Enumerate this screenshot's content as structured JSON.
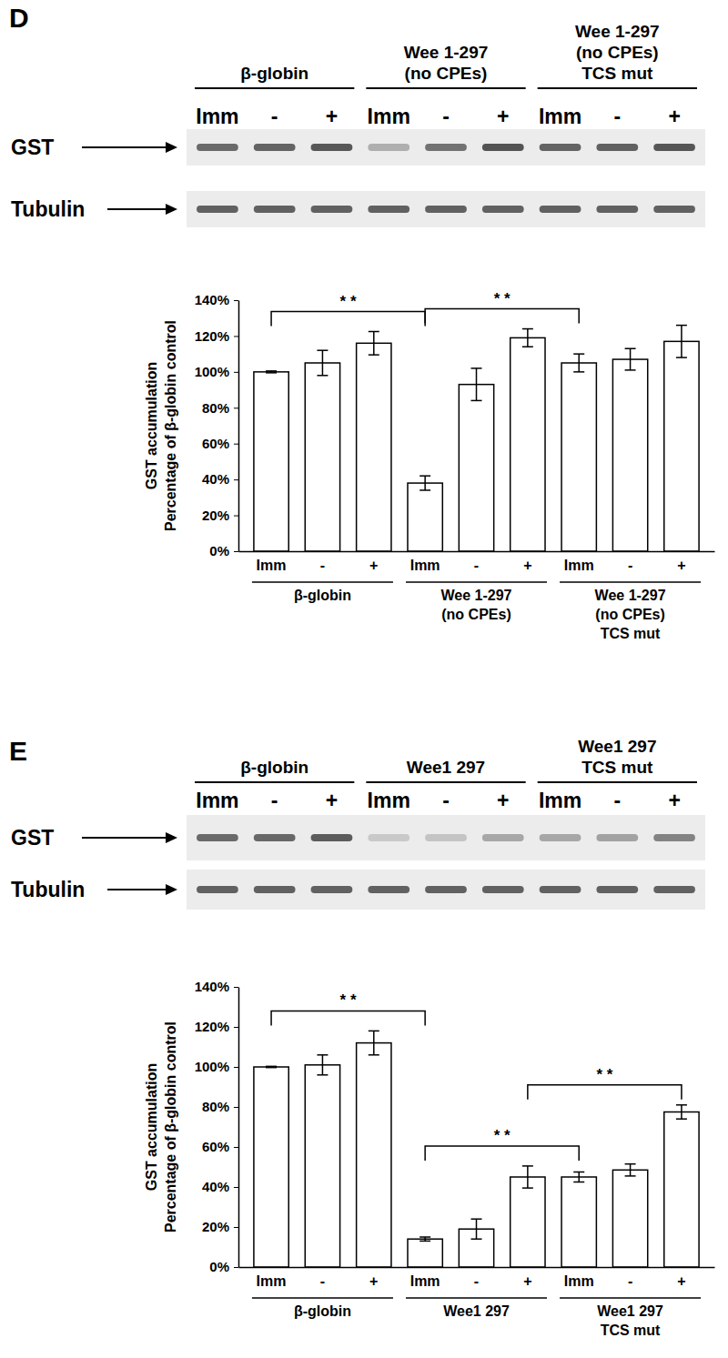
{
  "chart_data": [
    {
      "type": "bar",
      "categories": [
        "Imm",
        "-",
        "+",
        "Imm",
        "-",
        "+",
        "Imm",
        "-",
        "+"
      ],
      "groups": [
        [
          "β-globin"
        ],
        [
          "Wee 1-297",
          "(no CPEs)"
        ],
        [
          "Wee 1-297",
          "(no CPEs)",
          "TCS mut"
        ]
      ],
      "y_label": [
        "GST accumulation",
        "Percentage of β-globin control"
      ],
      "values": [
        100,
        105,
        116,
        38,
        93,
        119,
        105,
        107,
        117
      ],
      "errors": [
        0.5,
        7,
        6.5,
        4,
        9,
        5,
        5,
        6,
        9
      ],
      "color": "#ffffff",
      "ylim": [
        0,
        140
      ],
      "yticks": [
        {
          "value": 0,
          "label": "0%"
        },
        {
          "value": 20,
          "label": "20%"
        },
        {
          "value": 40,
          "label": "40%"
        },
        {
          "value": 60,
          "label": "60%"
        },
        {
          "value": 80,
          "label": "80%"
        },
        {
          "value": 100,
          "label": "100%"
        },
        {
          "value": 120,
          "label": "120%"
        },
        {
          "value": 140,
          "label": "140%"
        }
      ],
      "grid": false,
      "annotations": [
        {
          "text": "* *",
          "from": 0,
          "to": 3
        },
        {
          "text": "* *",
          "from": 3,
          "to": 6
        }
      ]
    },
    {
      "type": "bar",
      "categories": [
        "Imm",
        "-",
        "+",
        "Imm",
        "-",
        "+",
        "Imm",
        "-",
        "+"
      ],
      "groups": [
        [
          "β-globin"
        ],
        [
          "Wee1 297"
        ],
        [
          "Wee1 297",
          "TCS mut"
        ]
      ],
      "y_label": [
        "GST accumulation",
        "Percentage of β-globin control"
      ],
      "values": [
        100,
        101,
        112,
        14,
        19,
        45,
        45,
        48.5,
        77.5
      ],
      "errors": [
        0.3,
        5,
        6,
        1,
        5,
        5.5,
        2.5,
        3,
        3.5
      ],
      "color": "#ffffff",
      "ylim": [
        0,
        140
      ],
      "yticks": [
        {
          "value": 0,
          "label": "0%"
        },
        {
          "value": 20,
          "label": "20%"
        },
        {
          "value": 40,
          "label": "40%"
        },
        {
          "value": 60,
          "label": "60%"
        },
        {
          "value": 80,
          "label": "80%"
        },
        {
          "value": 100,
          "label": "100%"
        },
        {
          "value": 120,
          "label": "120%"
        },
        {
          "value": 140,
          "label": "140%"
        }
      ],
      "grid": false,
      "annotations": [
        {
          "text": "* *",
          "from": 0,
          "to": 3
        },
        {
          "text": "* *",
          "from": 3,
          "to": 6
        },
        {
          "text": "* *",
          "from": 5,
          "to": 8
        }
      ]
    }
  ],
  "blots": [
    {
      "panel": "D",
      "groups": [
        [
          "β-globin"
        ],
        [
          "Wee 1-297",
          "(no CPEs)"
        ],
        [
          "Wee 1-297",
          "(no CPEs)",
          "TCS mut"
        ]
      ],
      "lanes": [
        "Imm",
        "-",
        "+",
        "Imm",
        "-",
        "+",
        "Imm",
        "-",
        "+"
      ],
      "rows": [
        "GST",
        "Tubulin"
      ]
    },
    {
      "panel": "E",
      "groups": [
        [
          "β-globin"
        ],
        [
          "Wee1 297"
        ],
        [
          "Wee1 297",
          "TCS mut"
        ]
      ],
      "lanes": [
        "Imm",
        "-",
        "+",
        "Imm",
        "-",
        "+",
        "Imm",
        "-",
        "+"
      ],
      "rows": [
        "GST",
        "Tubulin"
      ]
    }
  ]
}
